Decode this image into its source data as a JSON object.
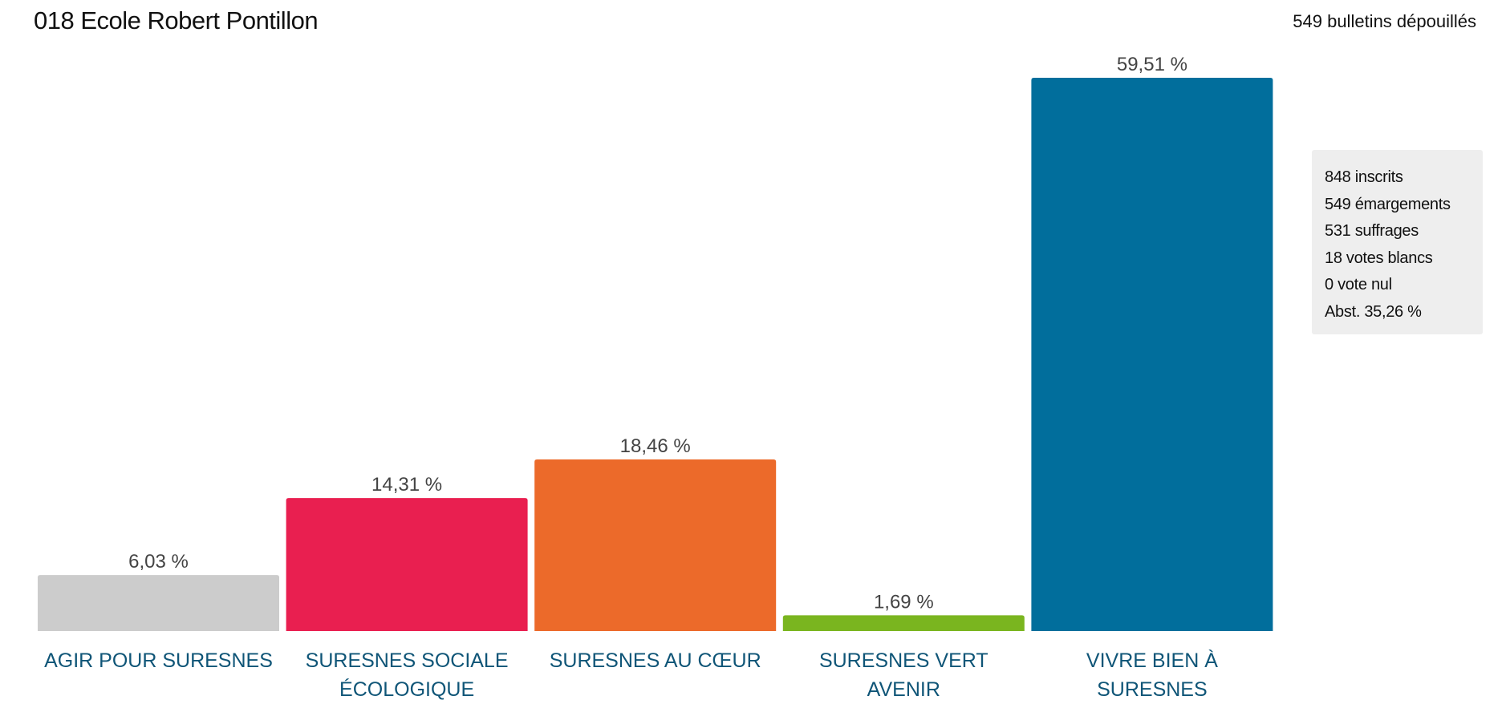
{
  "header": {
    "title": "018 Ecole Robert Pontillon",
    "counted": "549 bulletins dépouillés"
  },
  "stats": [
    "848 inscrits",
    "549 émargements",
    "531 suffrages",
    "18 votes blancs",
    "0 vote nul",
    "Abst. 35,26 %"
  ],
  "chart_data": {
    "type": "bar",
    "title": "018 Ecole Robert Pontillon",
    "xlabel": "",
    "ylabel": "",
    "ylim": [
      0,
      59.51
    ],
    "grid": false,
    "categories": [
      [
        "AGIR POUR SURESNES"
      ],
      [
        "SURESNES SOCIALE",
        "ÉCOLOGIQUE"
      ],
      [
        "SURESNES AU CŒUR"
      ],
      [
        "SURESNES VERT",
        "AVENIR"
      ],
      [
        "VIVRE BIEN À",
        "SURESNES"
      ]
    ],
    "values": [
      6.03,
      14.31,
      18.46,
      1.69,
      59.51
    ],
    "value_labels": [
      "6,03 %",
      "14,31 %",
      "18,46 %",
      "1,69 %",
      "59,51 %"
    ],
    "colors": [
      "#cccccc",
      "#e91f50",
      "#ec6a2a",
      "#7ab51f",
      "#016e9c"
    ],
    "label_color": "#0f5577",
    "value_label_color": "#444444"
  }
}
